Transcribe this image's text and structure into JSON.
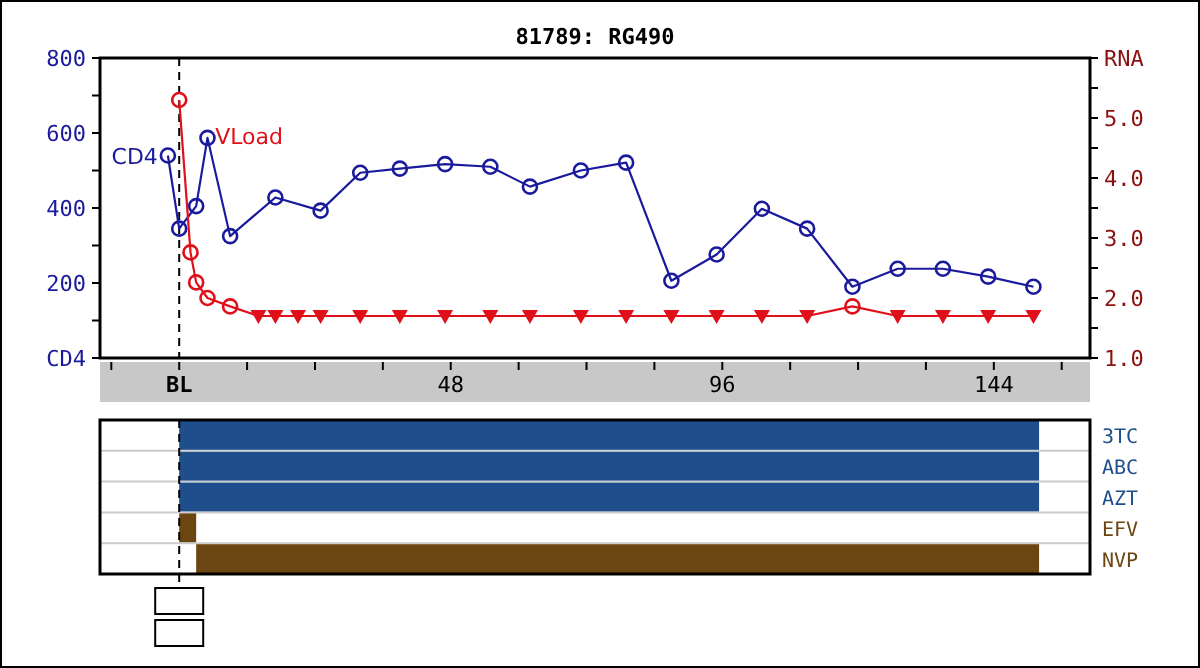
{
  "chart_data": [
    {
      "type": "line",
      "title": "81789: RG490",
      "grid": false,
      "xlim": [
        -14,
        161
      ],
      "xticks": [
        {
          "value": -12,
          "label": null
        },
        {
          "value": 0,
          "label": "BL"
        },
        {
          "value": 12,
          "label": null
        },
        {
          "value": 24,
          "label": null
        },
        {
          "value": 36,
          "label": null
        },
        48,
        {
          "value": 60,
          "label": null
        },
        {
          "value": 72,
          "label": null
        },
        {
          "value": 84,
          "label": null
        },
        96,
        {
          "value": 108,
          "label": null
        },
        {
          "value": 120,
          "label": null
        },
        {
          "value": 132,
          "label": null
        },
        144,
        {
          "value": 156,
          "label": null
        }
      ],
      "ylim": [
        0,
        800
      ],
      "yticks": [
        {
          "value": 0,
          "label": "CD4"
        },
        {
          "value": 100,
          "label": null
        },
        200,
        {
          "value": 300,
          "label": null
        },
        400,
        {
          "value": 500,
          "label": null
        },
        600,
        {
          "value": 700,
          "label": null
        },
        800
      ],
      "y2lim": [
        1,
        6
      ],
      "y2ticks": [
        {
          "value": 1,
          "label": "1.0"
        },
        {
          "value": 1.5,
          "label": null
        },
        {
          "value": 2,
          "label": "2.0"
        },
        {
          "value": 2.5,
          "label": null
        },
        {
          "value": 3,
          "label": "3.0"
        },
        {
          "value": 3.5,
          "label": null
        },
        {
          "value": 4,
          "label": "4.0"
        },
        {
          "value": 4.5,
          "label": null
        },
        {
          "value": 5,
          "label": "5.0"
        },
        {
          "value": 5.5,
          "label": null
        },
        {
          "value": 6,
          "label": "RNA"
        }
      ],
      "ref_lines": [
        {
          "axis": "x",
          "value": 0,
          "color": "#000000",
          "line_style": "dashed"
        }
      ],
      "series": [
        {
          "name": "CD4",
          "type": "line",
          "color": "#1a1a9c",
          "marker": "circle",
          "x": [
            -2,
            0,
            3,
            5,
            9,
            17,
            25,
            32,
            39,
            47,
            55,
            62,
            71,
            79,
            87,
            95,
            103,
            111,
            119,
            127,
            135,
            143,
            151
          ],
          "values": [
            540,
            345,
            405,
            587,
            325,
            428,
            393,
            494,
            505,
            517,
            510,
            457,
            500,
            521,
            206,
            276,
            398,
            345,
            190,
            238,
            238,
            217,
            190
          ]
        },
        {
          "name": "VLoad",
          "type": "line",
          "axis": "y2",
          "color": "#e0101a",
          "marker": "none",
          "x": [
            0,
            2,
            3,
            5,
            9,
            14,
            17,
            21,
            25,
            32,
            39,
            47,
            55,
            62,
            71,
            79,
            87,
            95,
            103,
            111,
            119,
            127,
            135,
            143,
            151
          ],
          "values": [
            5.3,
            2.76,
            2.26,
            2.0,
            1.86,
            1.7,
            1.7,
            1.7,
            1.7,
            1.7,
            1.7,
            1.7,
            1.7,
            1.7,
            1.7,
            1.7,
            1.7,
            1.7,
            1.7,
            1.7,
            1.86,
            1.7,
            1.7,
            1.7,
            1.7
          ]
        },
        {
          "type": "scatter",
          "axis": "y2",
          "color": "#e0101a",
          "marker": "circle",
          "x": [
            0,
            2,
            3,
            5,
            9,
            119
          ],
          "values": [
            5.3,
            2.76,
            2.26,
            2.0,
            1.86,
            1.86
          ]
        },
        {
          "type": "scatter",
          "axis": "y2",
          "color": "#e0101a",
          "marker": "triangle",
          "x": [
            14,
            17,
            21,
            25,
            32,
            39,
            47,
            55,
            62,
            71,
            79,
            87,
            95,
            103,
            111,
            127,
            135,
            143,
            151
          ],
          "values": [
            1.7,
            1.7,
            1.7,
            1.7,
            1.7,
            1.7,
            1.7,
            1.7,
            1.7,
            1.7,
            1.7,
            1.7,
            1.7,
            1.7,
            1.7,
            1.7,
            1.7,
            1.7,
            1.7
          ]
        }
      ]
    },
    {
      "type": "bar",
      "orientation": "horizontal",
      "grid": "y",
      "tick_labels": "y",
      "xlim": [
        -14,
        161
      ],
      "categories": [
        "3TC",
        "ABC",
        "AZT",
        "EFV",
        "NVP"
      ],
      "base": [
        0,
        0,
        0,
        0,
        3
      ],
      "values": [
        152,
        152,
        152,
        3,
        149
      ],
      "colors": [
        "#1f4e8c",
        "#1f4e8c",
        "#1f4e8c",
        "#6b4512",
        "#6b4512"
      ],
      "ref_lines": [
        {
          "axis": "x",
          "value": 0,
          "color": "#000000",
          "line_style": "dashed"
        }
      ]
    }
  ]
}
